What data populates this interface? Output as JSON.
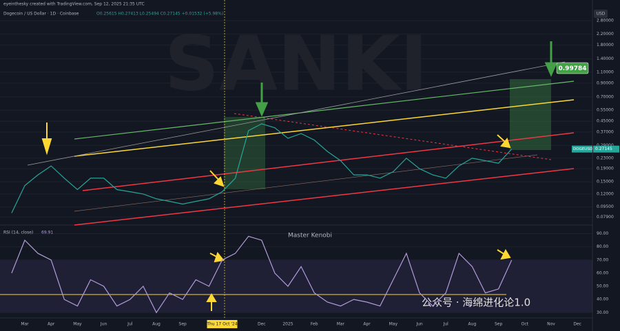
{
  "header": {
    "author_line": "eyeinthesky created with TradingView.com, Sep 12, 2025 21:35 UTC",
    "symbol": "Dogecoin / US Dollar · 1D · Coinbase",
    "ohlc": "O0.25615 H0.27413 L0.25494 C0.27145 +0.01532 (+5.98%)"
  },
  "watermark": "SANKI",
  "currency": "USD",
  "target_label": "0.99784",
  "indicator_author": "Master Kenobi",
  "footer_watermark": "公众号 · 海绵进化论1.0",
  "chart_data": [
    {
      "type": "line",
      "log_scale": true,
      "ylim": [
        0.07,
        3.6
      ],
      "yticks": [
        {
          "value": 2.8,
          "label": "2.80000"
        },
        {
          "value": 2.2,
          "label": "2.20000"
        },
        {
          "value": 1.8,
          "label": "1.80000"
        },
        {
          "value": 1.4,
          "label": "1.40000"
        },
        {
          "value": 1.1,
          "label": "1.10000"
        },
        {
          "value": 0.9,
          "label": "0.90000"
        },
        {
          "value": 0.7,
          "label": "0.70000"
        },
        {
          "value": 0.55,
          "label": "0.55000"
        },
        {
          "value": 0.45,
          "label": "0.45000"
        },
        {
          "value": 0.37,
          "label": "0.37000"
        },
        {
          "value": 0.29,
          "label": "0.29000"
        },
        {
          "value": 0.23,
          "label": "0.23000"
        },
        {
          "value": 0.19,
          "label": "0.19000"
        },
        {
          "value": 0.15,
          "label": "0.15000"
        },
        {
          "value": 0.12,
          "label": "0.12000"
        },
        {
          "value": 0.095,
          "label": "0.09500"
        },
        {
          "value": 0.079,
          "label": "0.07900"
        }
      ],
      "series": [
        {
          "name": "DOGEUSD",
          "color": "#26a69a",
          "values": [
            0.085,
            0.14,
            0.17,
            0.2,
            0.16,
            0.13,
            0.16,
            0.16,
            0.13,
            0.125,
            0.12,
            0.11,
            0.105,
            0.1,
            0.105,
            0.11,
            0.125,
            0.16,
            0.38,
            0.43,
            0.4,
            0.33,
            0.36,
            0.32,
            0.26,
            0.22,
            0.17,
            0.17,
            0.16,
            0.18,
            0.23,
            0.19,
            0.17,
            0.16,
            0.2,
            0.23,
            0.22,
            0.21,
            0.27145,
            null,
            null,
            null,
            null,
            null
          ]
        }
      ]
    },
    {
      "type": "line",
      "ylim": [
        27,
        95
      ],
      "yticks": [
        {
          "value": 90,
          "label": "90.00"
        },
        {
          "value": 80,
          "label": "80.00"
        },
        {
          "value": 70,
          "label": "70.00"
        },
        {
          "value": 60,
          "label": "60.00"
        },
        {
          "value": 50,
          "label": "50.00"
        },
        {
          "value": 40,
          "label": "40.00"
        },
        {
          "value": 30,
          "label": "30.00"
        }
      ],
      "categories": [
        null,
        "Mar",
        null,
        "Apr",
        null,
        "May",
        null,
        "Jun",
        null,
        "Jul",
        null,
        "Aug",
        null,
        "Sep",
        null,
        null,
        "Thu 17 Oct '24",
        null,
        null,
        "Dec",
        null,
        "2025",
        null,
        "Feb",
        null,
        "Mar",
        null,
        "Apr",
        null,
        "May",
        null,
        "Jun",
        null,
        "Jul",
        null,
        "Aug",
        null,
        "Sep",
        null,
        "Oct",
        null,
        "Nov",
        null,
        "Dec"
      ],
      "series": [
        {
          "name": "RSI (14, close)",
          "color": "#b39ddb",
          "values": [
            60,
            85,
            75,
            70,
            40,
            35,
            55,
            50,
            35,
            40,
            50,
            30,
            45,
            40,
            55,
            50,
            70,
            75,
            88,
            85,
            60,
            50,
            65,
            45,
            38,
            35,
            40,
            38,
            35,
            55,
            75,
            45,
            35,
            45,
            75,
            65,
            45,
            48,
            69.91,
            null,
            null,
            null,
            null,
            null
          ]
        }
      ]
    }
  ]
}
